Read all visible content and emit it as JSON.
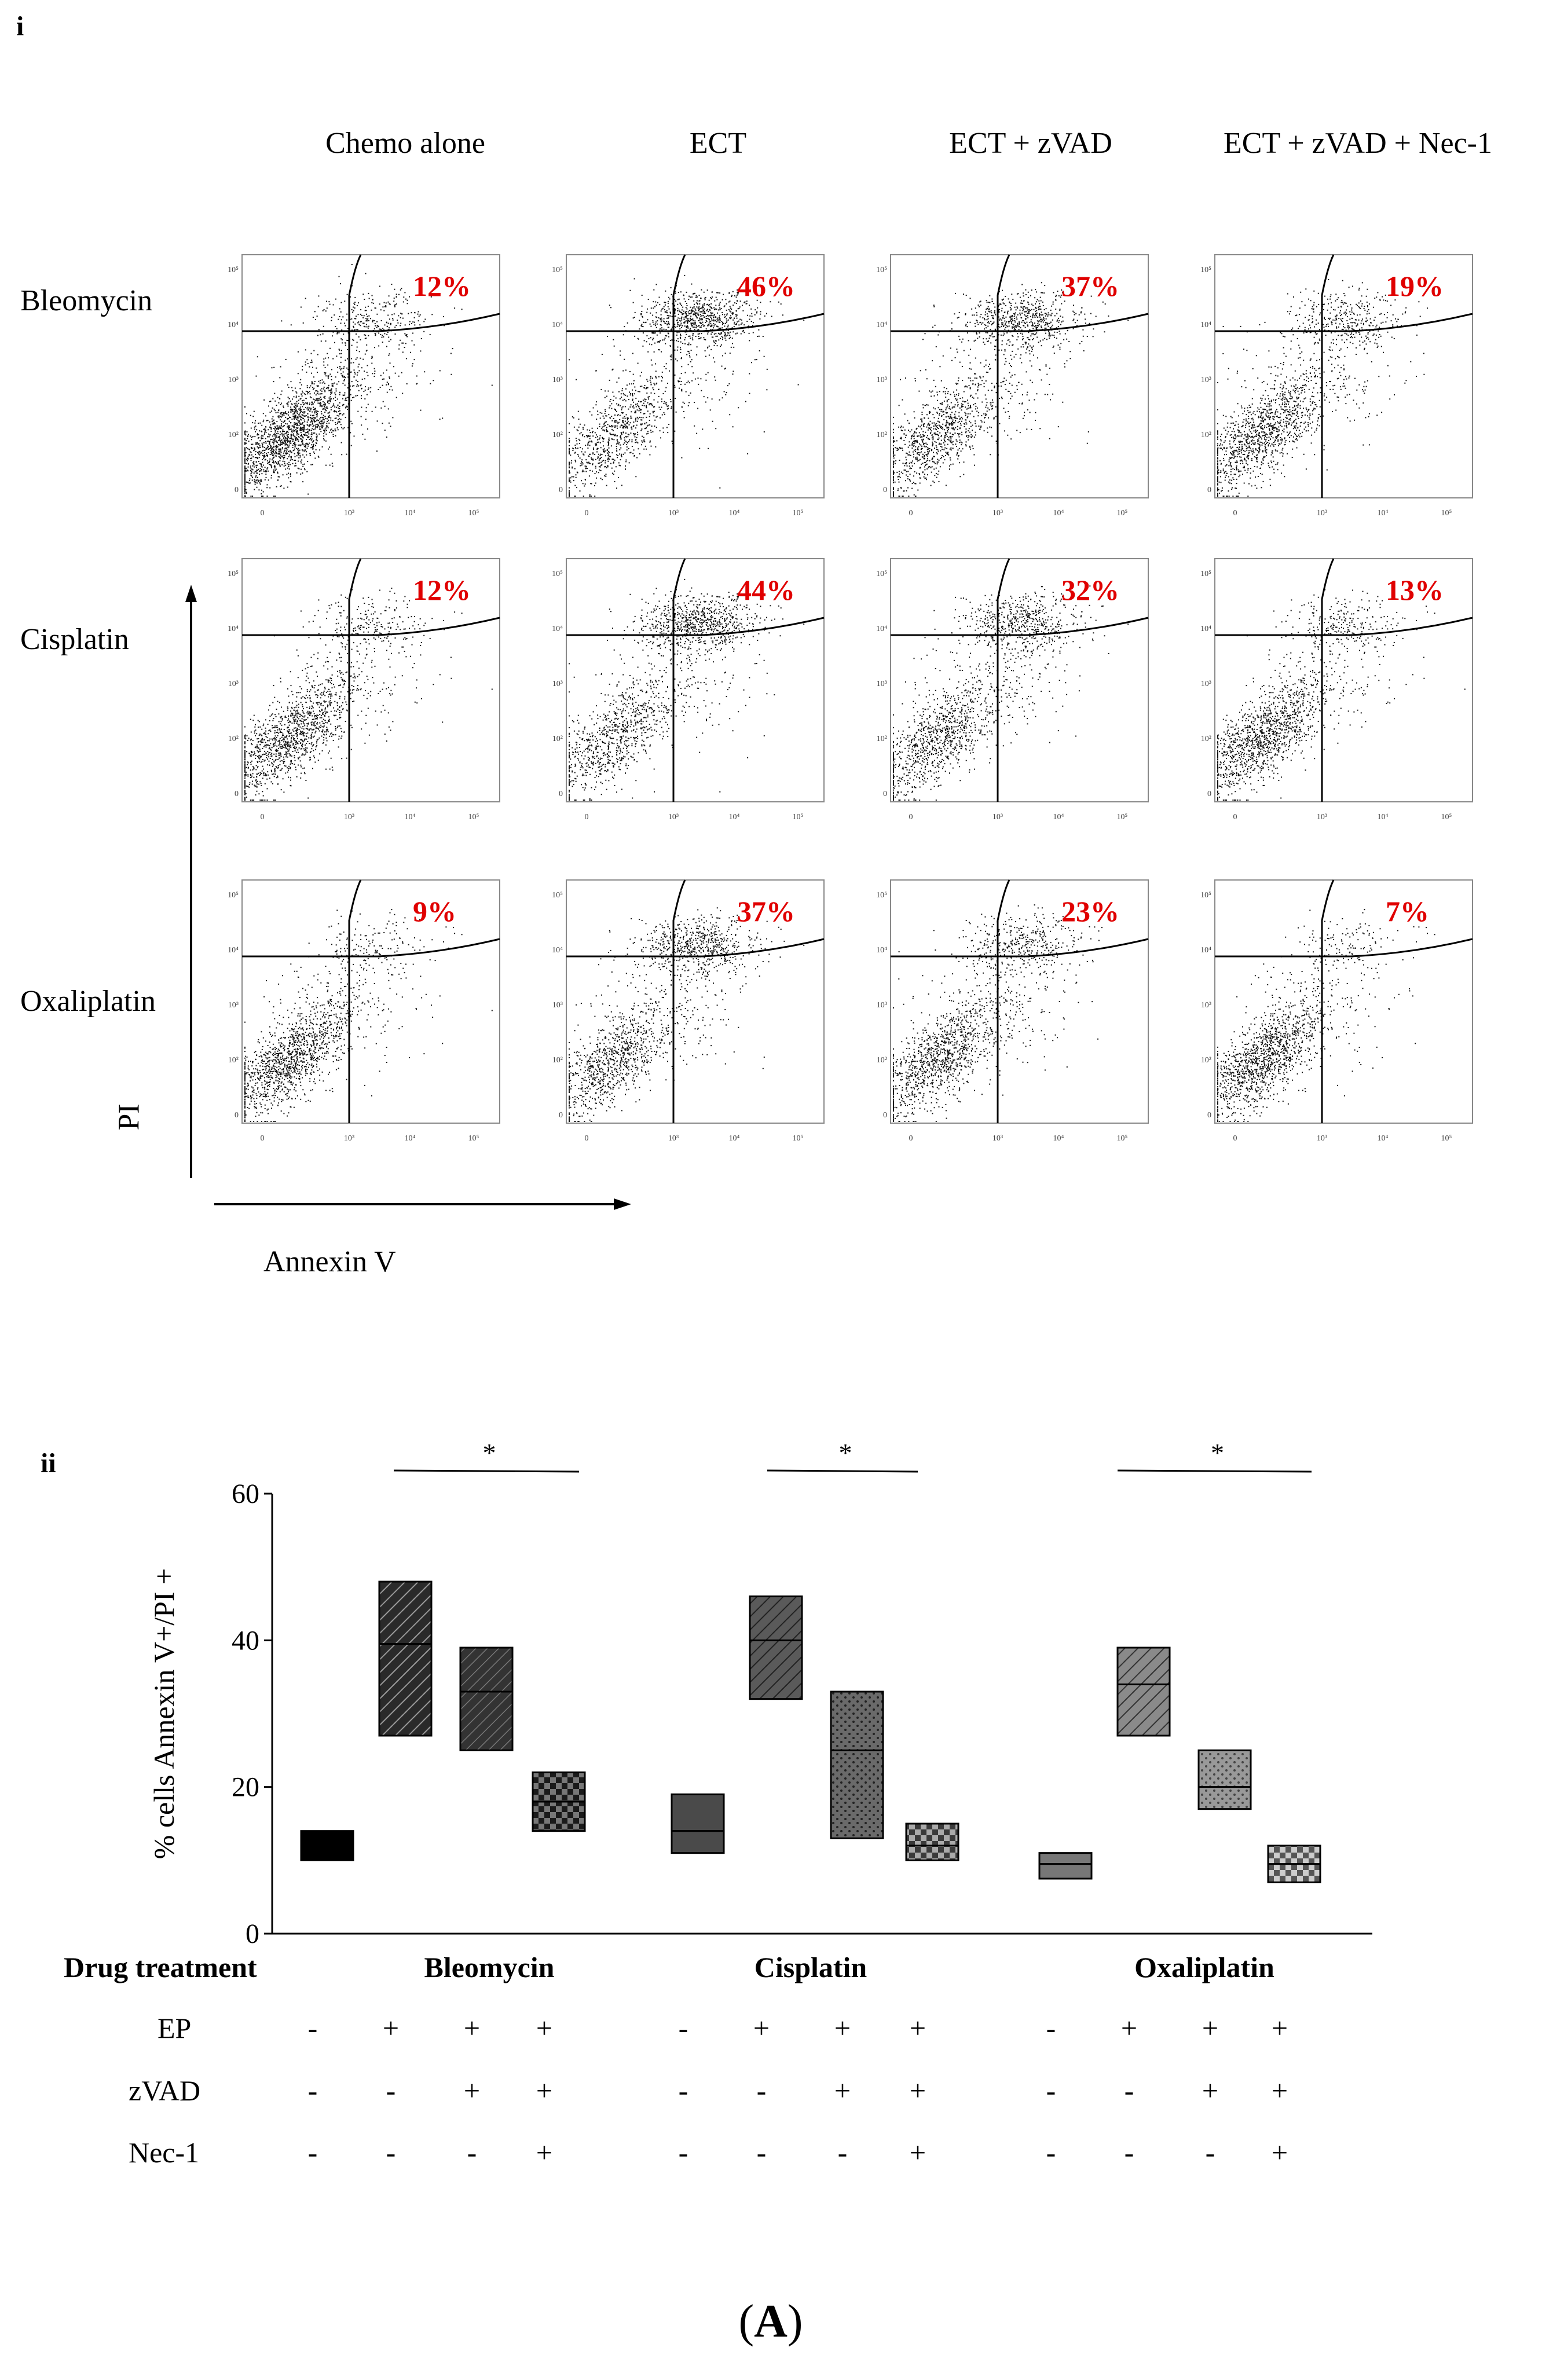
{
  "panel_i_label": "i",
  "panel_ii_label": "ii",
  "figure_label": "A",
  "flow": {
    "columns": [
      "Chemo alone",
      "ECT",
      "ECT + zVAD",
      "ECT + zVAD  + Nec-1"
    ],
    "rows": [
      "Bleomycin",
      "Cisplatin",
      "Oxaliplatin"
    ],
    "y_axis_label": "PI",
    "x_axis_label": "Annexin  V",
    "tick_labels_y": [
      "10⁵",
      "10⁴",
      "10³",
      "10²",
      "0"
    ],
    "tick_labels_x": [
      "0",
      "10³",
      "10⁴",
      "10⁵"
    ],
    "percentages": [
      [
        "12%",
        "46%",
        "37%",
        "19%"
      ],
      [
        "12%",
        "44%",
        "32%",
        "13%"
      ],
      [
        "9%",
        "37%",
        "23%",
        "7%"
      ]
    ]
  },
  "chart_data": {
    "type": "floating-bar",
    "ylabel": "% cells  Annexin  V+/PI +",
    "ylim": [
      0,
      60
    ],
    "yticks": [
      "0",
      "20",
      "40",
      "60"
    ],
    "group_title": "Drug treatment",
    "groups": [
      "Bleomycin",
      "Cisplatin",
      "Oxaliplatin"
    ],
    "significance": [
      "*",
      "*",
      "*"
    ],
    "bars": [
      {
        "group": "Bleomycin",
        "min": 10,
        "max": 14,
        "line": 11.5,
        "pattern": "solid-black"
      },
      {
        "group": "Bleomycin",
        "min": 27,
        "max": 48,
        "line": 39.5,
        "pattern": "hatch-dark"
      },
      {
        "group": "Bleomycin",
        "min": 25,
        "max": 39,
        "line": 33,
        "pattern": "hatch-dark-2"
      },
      {
        "group": "Bleomycin",
        "min": 14,
        "max": 22,
        "line": 18,
        "pattern": "checker-dark"
      },
      {
        "group": "Cisplatin",
        "min": 11,
        "max": 19,
        "line": 14,
        "pattern": "solid-gray"
      },
      {
        "group": "Cisplatin",
        "min": 32,
        "max": 46,
        "line": 40,
        "pattern": "hatch-gray"
      },
      {
        "group": "Cisplatin",
        "min": 13,
        "max": 33,
        "line": 25,
        "pattern": "dots-gray"
      },
      {
        "group": "Cisplatin",
        "min": 10,
        "max": 15,
        "line": 12,
        "pattern": "checker-gray"
      },
      {
        "group": "Oxaliplatin",
        "min": 7.5,
        "max": 11,
        "line": 9.5,
        "pattern": "solid-lightgray"
      },
      {
        "group": "Oxaliplatin",
        "min": 27,
        "max": 39,
        "line": 34,
        "pattern": "hatch-light"
      },
      {
        "group": "Oxaliplatin",
        "min": 17,
        "max": 25,
        "line": 20,
        "pattern": "dots-light"
      },
      {
        "group": "Oxaliplatin",
        "min": 7,
        "max": 12,
        "line": 9.5,
        "pattern": "checker-light"
      }
    ],
    "conditions": [
      {
        "label": "EP",
        "values": [
          "-",
          "+",
          "+",
          "+",
          "-",
          "+",
          "+",
          "+",
          "-",
          "+",
          "+",
          "+"
        ]
      },
      {
        "label": "zVAD",
        "values": [
          "-",
          "-",
          "+",
          "+",
          "-",
          "-",
          "+",
          "+",
          "-",
          "-",
          "+",
          "+"
        ]
      },
      {
        "label": "Nec-1",
        "values": [
          "-",
          "-",
          "-",
          "+",
          "-",
          "-",
          "-",
          "+",
          "-",
          "-",
          "-",
          "+"
        ]
      }
    ]
  }
}
